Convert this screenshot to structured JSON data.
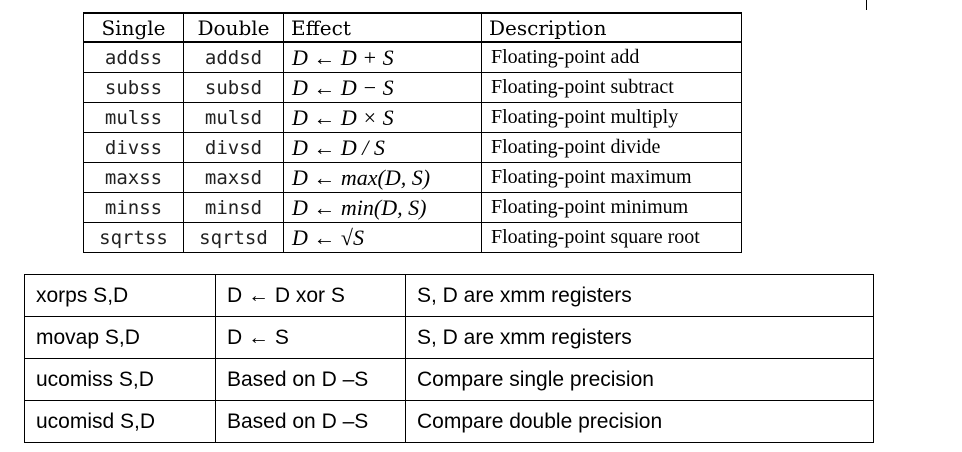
{
  "ops_table": {
    "headers": [
      "Single",
      "Double",
      "Effect",
      "Description"
    ],
    "rows": [
      {
        "single": "addss",
        "double": "addsd",
        "effect": "D ← D + S",
        "description": "Floating-point add"
      },
      {
        "single": "subss",
        "double": "subsd",
        "effect": "D ← D − S",
        "description": "Floating-point subtract"
      },
      {
        "single": "mulss",
        "double": "mulsd",
        "effect": "D ← D × S",
        "description": "Floating-point multiply"
      },
      {
        "single": "divss",
        "double": "divsd",
        "effect": "D ← D / S",
        "description": "Floating-point divide"
      },
      {
        "single": "maxss",
        "double": "maxsd",
        "effect": "D ← max(D, S)",
        "description": "Floating-point maximum"
      },
      {
        "single": "minss",
        "double": "minsd",
        "effect": "D ← min(D, S)",
        "description": "Floating-point minimum"
      },
      {
        "single": "sqrtss",
        "double": "sqrtsd",
        "effect": "D ← √S",
        "description": "Floating-point square root"
      }
    ]
  },
  "misc_table": {
    "rows": [
      {
        "instr": "xorps S,D",
        "effect": "D ← D xor S",
        "note": "S, D are xmm registers"
      },
      {
        "instr": "movap S,D",
        "effect": "D ← S",
        "note": "S, D are xmm registers"
      },
      {
        "instr": "ucomiss S,D",
        "effect": "Based on D –S",
        "note": "Compare single precision"
      },
      {
        "instr": "ucomisd S,D",
        "effect": "Based on D –S",
        "note": "Compare double precision"
      }
    ]
  }
}
